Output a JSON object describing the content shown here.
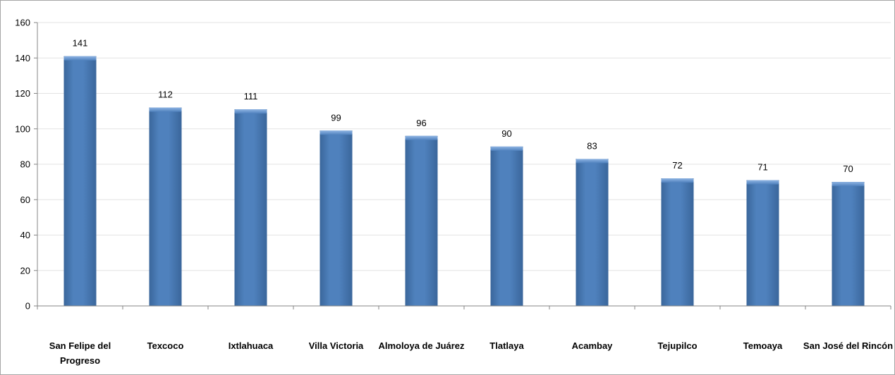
{
  "chart_data": {
    "type": "bar",
    "title": "",
    "xlabel": "",
    "ylabel": "",
    "categories": [
      "San Felipe del Progreso",
      "Texcoco",
      "Ixtlahuaca",
      "Villa Victoria",
      "Almoloya de Juárez",
      "Tlatlaya",
      "Acambay",
      "Tejupilco",
      "Temoaya",
      "San José del Rincón"
    ],
    "category_lines": [
      [
        "San Felipe del",
        "Progreso"
      ],
      [
        "Texcoco"
      ],
      [
        "Ixtlahuaca"
      ],
      [
        "Villa Victoria"
      ],
      [
        "Almoloya de Juárez"
      ],
      [
        "Tlatlaya"
      ],
      [
        "Acambay"
      ],
      [
        "Tejupilco"
      ],
      [
        "Temoaya"
      ],
      [
        "San José del Rincón"
      ]
    ],
    "values": [
      141,
      112,
      111,
      99,
      96,
      90,
      83,
      72,
      71,
      70
    ],
    "ylim": [
      0,
      160
    ],
    "yticks": [
      0,
      20,
      40,
      60,
      80,
      100,
      120,
      140,
      160
    ],
    "grid": true,
    "legend": "none",
    "data_labels": true,
    "colors": {
      "bar": "#4f81bd",
      "bar_dark": "#3a669b",
      "bar_light": "#8eb4e3",
      "grid": "#e3e3e3",
      "axis": "#868686",
      "border": "#a6a6a6"
    }
  }
}
